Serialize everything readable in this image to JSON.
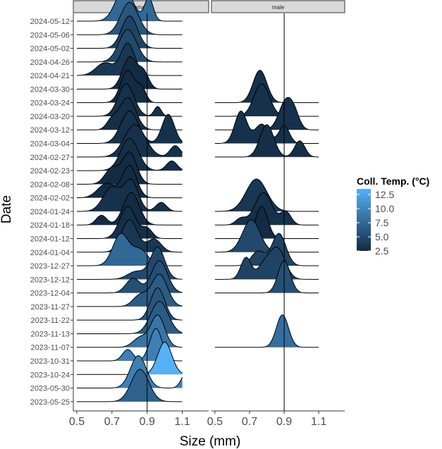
{
  "chart_data": {
    "type": "ridgeline",
    "xlabel": "Size (mm)",
    "ylabel": "Date",
    "xlim": [
      0.48,
      1.25
    ],
    "x_ticks": [
      0.5,
      0.7,
      0.9,
      1.1
    ],
    "x_tick_labels": [
      "0.5",
      "0.7",
      "0.9",
      "1.1"
    ],
    "reference_line_x": 0.9,
    "dates": [
      "2024-05-12",
      "2024-05-06",
      "2024-05-02",
      "2024-04-26",
      "2024-04-21",
      "2024-03-30",
      "2024-03-24",
      "2024-03-20",
      "2024-03-12",
      "2024-03-04",
      "2024-02-27",
      "2024-02-23",
      "2024-02-08",
      "2024-02-02",
      "2024-01-24",
      "2024-01-18",
      "2024-01-12",
      "2024-01-04",
      "2023-12-27",
      "2023-12-12",
      "2023-12-04",
      "2023-11-27",
      "2023-11-22",
      "2023-11-13",
      "2023-11-07",
      "2023-10-31",
      "2023-10-24",
      "2023-05-30",
      "2023-05-25"
    ],
    "panels": [
      {
        "name": "female",
        "ridges": [
          {
            "date": "2024-05-12",
            "temp": 7.5,
            "peaks": [
              [
                0.77,
                0.05,
                1.0
              ],
              [
                0.91,
                0.025,
                0.7
              ]
            ]
          },
          {
            "date": "2024-05-06",
            "temp": 6.0,
            "peaks": [
              [
                0.8,
                0.05,
                1.0
              ]
            ]
          },
          {
            "date": "2024-05-02",
            "temp": 4.5,
            "peaks": [
              [
                0.8,
                0.045,
                1.0
              ]
            ]
          },
          {
            "date": "2024-04-26",
            "temp": 5.0,
            "peaks": [
              [
                0.79,
                0.05,
                1.0
              ]
            ]
          },
          {
            "date": "2024-04-21",
            "temp": 3.5,
            "peaks": [
              [
                0.79,
                0.04,
                1.0
              ],
              [
                0.66,
                0.05,
                0.4
              ]
            ]
          },
          {
            "date": "2024-03-30",
            "temp": 2.5,
            "peaks": [
              [
                0.8,
                0.04,
                1.0
              ],
              [
                0.88,
                0.03,
                0.5
              ]
            ]
          },
          {
            "date": "2024-03-24",
            "temp": 2.5,
            "peaks": [
              [
                0.79,
                0.04,
                1.0
              ],
              [
                0.87,
                0.025,
                0.4
              ]
            ]
          },
          {
            "date": "2024-03-20",
            "temp": 3.0,
            "peaks": [
              [
                0.78,
                0.045,
                1.0
              ],
              [
                0.96,
                0.02,
                0.3
              ]
            ]
          },
          {
            "date": "2024-03-12",
            "temp": 2.8,
            "peaks": [
              [
                0.79,
                0.045,
                1.0
              ],
              [
                0.7,
                0.03,
                0.3
              ]
            ]
          },
          {
            "date": "2024-03-04",
            "temp": 3.0,
            "peaks": [
              [
                0.8,
                0.05,
                1.0
              ],
              [
                1.02,
                0.035,
                0.9
              ]
            ]
          },
          {
            "date": "2024-02-27",
            "temp": 3.0,
            "peaks": [
              [
                0.83,
                0.06,
                1.0
              ],
              [
                1.06,
                0.03,
                0.35
              ]
            ]
          },
          {
            "date": "2024-02-23",
            "temp": 2.8,
            "peaks": [
              [
                0.8,
                0.05,
                1.0
              ],
              [
                1.04,
                0.03,
                0.3
              ]
            ]
          },
          {
            "date": "2024-02-08",
            "temp": 2.5,
            "peaks": [
              [
                0.8,
                0.04,
                1.0
              ],
              [
                0.7,
                0.04,
                0.5
              ]
            ]
          },
          {
            "date": "2024-02-02",
            "temp": 2.5,
            "peaks": [
              [
                0.8,
                0.04,
                1.0
              ],
              [
                0.67,
                0.05,
                0.45
              ]
            ]
          },
          {
            "date": "2024-01-24",
            "temp": 3.0,
            "peaks": [
              [
                0.81,
                0.04,
                1.0
              ],
              [
                0.7,
                0.05,
                0.8
              ],
              [
                0.98,
                0.03,
                0.3
              ]
            ]
          },
          {
            "date": "2024-01-18",
            "temp": 2.5,
            "peaks": [
              [
                0.81,
                0.045,
                1.0
              ],
              [
                0.64,
                0.03,
                0.3
              ]
            ]
          },
          {
            "date": "2024-01-12",
            "temp": 2.8,
            "peaks": [
              [
                0.79,
                0.045,
                1.0
              ],
              [
                0.9,
                0.03,
                0.3
              ]
            ]
          },
          {
            "date": "2024-01-04",
            "temp": 3.5,
            "peaks": [
              [
                0.8,
                0.045,
                1.0
              ],
              [
                0.94,
                0.04,
                0.4
              ]
            ]
          },
          {
            "date": "2023-12-27",
            "temp": 7.5,
            "peaks": [
              [
                0.75,
                0.045,
                1.0
              ],
              [
                0.86,
                0.045,
                0.5
              ]
            ]
          },
          {
            "date": "2023-12-12",
            "temp": 5.0,
            "peaks": [
              [
                0.96,
                0.04,
                1.0
              ],
              [
                0.84,
                0.05,
                0.25
              ]
            ]
          },
          {
            "date": "2023-12-04",
            "temp": 5.5,
            "peaks": [
              [
                0.97,
                0.045,
                1.0
              ],
              [
                0.82,
                0.04,
                0.45
              ]
            ]
          },
          {
            "date": "2023-11-27",
            "temp": 6.5,
            "peaks": [
              [
                0.97,
                0.045,
                1.0
              ],
              [
                0.86,
                0.04,
                0.35
              ]
            ]
          },
          {
            "date": "2023-11-22",
            "temp": 6.0,
            "peaks": [
              [
                0.96,
                0.04,
                1.0
              ]
            ]
          },
          {
            "date": "2023-11-13",
            "temp": 6.5,
            "peaks": [
              [
                0.97,
                0.05,
                1.0
              ]
            ]
          },
          {
            "date": "2023-11-07",
            "temp": 8.5,
            "peaks": [
              [
                0.96,
                0.04,
                1.0
              ],
              [
                0.86,
                0.04,
                0.3
              ]
            ]
          },
          {
            "date": "2023-10-31",
            "temp": 9.5,
            "peaks": [
              [
                0.95,
                0.035,
                1.0
              ],
              [
                0.79,
                0.03,
                0.35
              ]
            ]
          },
          {
            "date": "2023-10-24",
            "temp": 13.5,
            "peaks": [
              [
                1.0,
                0.04,
                1.0
              ]
            ]
          },
          {
            "date": "2023-05-30",
            "temp": 9.5,
            "peaks": [
              [
                0.85,
                0.045,
                1.0
              ],
              [
                1.13,
                0.03,
                0.55
              ]
            ]
          },
          {
            "date": "2023-05-25",
            "temp": 7.0,
            "peaks": [
              [
                0.86,
                0.05,
                1.0
              ]
            ]
          }
        ]
      },
      {
        "name": "male",
        "ridges": [
          {
            "date": "2024-03-24",
            "temp": 3.0,
            "peaks": [
              [
                0.76,
                0.04,
                1.0
              ]
            ]
          },
          {
            "date": "2024-03-20",
            "temp": 3.0,
            "peaks": [
              [
                0.77,
                0.045,
                1.0
              ]
            ]
          },
          {
            "date": "2024-03-12",
            "temp": 3.0,
            "peaks": [
              [
                0.91,
                0.04,
                1.0
              ],
              [
                0.96,
                0.03,
                0.4
              ]
            ]
          },
          {
            "date": "2024-03-04",
            "temp": 3.0,
            "peaks": [
              [
                0.65,
                0.035,
                1.0
              ],
              [
                0.77,
                0.04,
                0.6
              ],
              [
                0.9,
                0.03,
                0.55
              ]
            ]
          },
          {
            "date": "2024-02-27",
            "temp": 2.8,
            "peaks": [
              [
                0.8,
                0.04,
                1.0
              ],
              [
                0.99,
                0.03,
                0.5
              ]
            ]
          },
          {
            "date": "2024-01-24",
            "temp": 3.5,
            "peaks": [
              [
                0.74,
                0.06,
                1.0
              ]
            ]
          },
          {
            "date": "2024-01-18",
            "temp": 3.0,
            "peaks": [
              [
                0.78,
                0.05,
                1.0
              ],
              [
                0.91,
                0.03,
                0.4
              ],
              [
                0.65,
                0.03,
                0.2
              ]
            ]
          },
          {
            "date": "2024-01-12",
            "temp": 2.5,
            "peaks": [
              [
                0.77,
                0.035,
                1.0
              ]
            ]
          },
          {
            "date": "2024-01-04",
            "temp": 5.0,
            "peaks": [
              [
                0.71,
                0.05,
                1.0
              ]
            ]
          },
          {
            "date": "2023-12-27",
            "temp": 4.5,
            "peaks": [
              [
                0.87,
                0.04,
                1.0
              ],
              [
                0.75,
                0.04,
                0.45
              ]
            ]
          },
          {
            "date": "2023-12-12",
            "temp": 4.5,
            "peaks": [
              [
                0.68,
                0.03,
                0.7
              ],
              [
                0.86,
                0.045,
                1.0
              ],
              [
                0.78,
                0.035,
                0.4
              ]
            ]
          },
          {
            "date": "2023-12-04",
            "temp": 5.5,
            "peaks": [
              [
                0.9,
                0.035,
                1.0
              ]
            ]
          },
          {
            "date": "2023-11-07",
            "temp": 8.0,
            "peaks": [
              [
                0.89,
                0.035,
                1.0
              ]
            ]
          }
        ]
      }
    ],
    "legend": {
      "title": "Coll. Temp. (°C)",
      "min": 2.5,
      "max": 13.5,
      "breaks": [
        12.5,
        10.0,
        7.5,
        5.0,
        2.5
      ],
      "break_labels": [
        "12.5",
        "10.0",
        "7.5",
        "5.0",
        "2.5"
      ],
      "color_low": "#132b43",
      "color_high": "#56b1f7"
    }
  }
}
